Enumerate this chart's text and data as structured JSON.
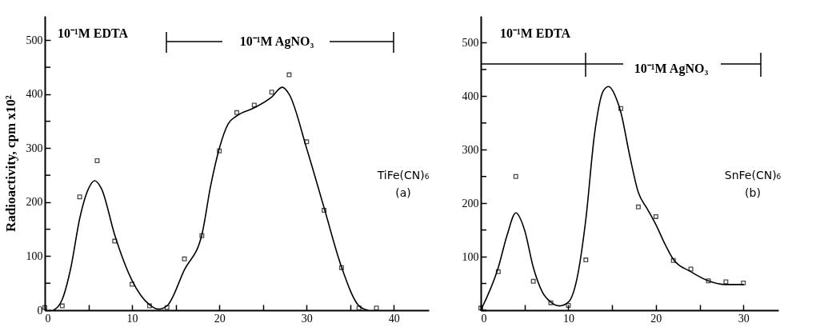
{
  "chart_data": [
    {
      "type": "scatter",
      "ylabel": "Radioactivity, cpm x10²",
      "xlim": [
        0,
        44
      ],
      "ylim": [
        0,
        545
      ],
      "xticks": [
        0,
        {
          "value": 5,
          "label": null
        },
        10,
        {
          "value": 15,
          "label": null
        },
        20,
        {
          "value": 25,
          "label": null
        },
        30,
        {
          "value": 35,
          "label": null
        },
        40
      ],
      "yticks": [
        0,
        {
          "value": 50,
          "label": null
        },
        100,
        {
          "value": 150,
          "label": null
        },
        200,
        {
          "value": 250,
          "label": null
        },
        300,
        {
          "value": 350,
          "label": null
        },
        400,
        {
          "value": 450,
          "label": null
        },
        500
      ],
      "grid": false,
      "annotations": [
        "10⁻¹M EDTA",
        "10⁻¹M AgNO₃",
        "TiFe(CN)₆\n(a)"
      ],
      "series": [
        {
          "marker": "square",
          "color": "#000000",
          "x": [
            0,
            2,
            4,
            6,
            8,
            10,
            12,
            14,
            16,
            18,
            20,
            22,
            24,
            26,
            28,
            30,
            32,
            34,
            36,
            38
          ],
          "values": [
            5,
            8,
            210,
            277,
            128,
            48,
            8,
            5,
            95,
            138,
            295,
            366,
            380,
            404,
            436,
            312,
            185,
            79,
            4,
            4
          ]
        },
        {
          "type": "line",
          "marker": "none",
          "color": "#000000",
          "x": [
            1,
            2,
            3,
            4,
            5,
            5.7,
            6.5,
            8,
            10,
            12,
            13,
            14,
            16,
            18,
            19,
            20,
            21,
            22,
            24,
            26,
            27.2,
            28,
            30,
            32,
            34,
            36,
            37
          ],
          "values": [
            0,
            20,
            80,
            170,
            225,
            240,
            225,
            140,
            55,
            10,
            2,
            8,
            75,
            140,
            230,
            300,
            345,
            360,
            375,
            395,
            413,
            400,
            300,
            190,
            80,
            8,
            0
          ]
        }
      ]
    },
    {
      "type": "scatter",
      "xlim": [
        0,
        34
      ],
      "ylim": [
        0,
        550
      ],
      "xticks": [
        0,
        {
          "value": 5,
          "label": null
        },
        10,
        {
          "value": 15,
          "label": null
        },
        20,
        {
          "value": 25,
          "label": null
        },
        30
      ],
      "yticks": [
        {
          "value": 0,
          "label": null
        },
        {
          "value": 50,
          "label": null
        },
        100,
        {
          "value": 150,
          "label": null
        },
        200,
        {
          "value": 250,
          "label": null
        },
        300,
        {
          "value": 350,
          "label": null
        },
        400,
        {
          "value": 450,
          "label": null
        },
        500
      ],
      "grid": false,
      "annotations": [
        "10⁻¹M EDTA",
        "10⁻¹M AgNO₃",
        "SnFe(CN)₆\n(b)"
      ],
      "series": [
        {
          "marker": "square",
          "color": "#000000",
          "x": [
            0,
            2,
            4,
            6,
            8,
            10,
            12,
            16,
            18,
            20,
            22,
            24,
            26,
            28,
            30
          ],
          "values": [
            4,
            72,
            250,
            54,
            14,
            9,
            94,
            377,
            193,
            175,
            93,
            77,
            55,
            53,
            51
          ]
        },
        {
          "type": "line",
          "marker": "none",
          "color": "#000000",
          "x": [
            0,
            2,
            3,
            4,
            5,
            6,
            7,
            8,
            9,
            10,
            11,
            12,
            13,
            14,
            14.6,
            15.5,
            16,
            17,
            18,
            19,
            20,
            21,
            22,
            24,
            26,
            28,
            30
          ],
          "values": [
            0,
            80,
            140,
            182,
            150,
            80,
            35,
            15,
            8,
            15,
            60,
            170,
            330,
            410,
            418,
            395,
            370,
            290,
            220,
            190,
            160,
            125,
            95,
            72,
            55,
            48,
            48
          ]
        }
      ]
    }
  ]
}
